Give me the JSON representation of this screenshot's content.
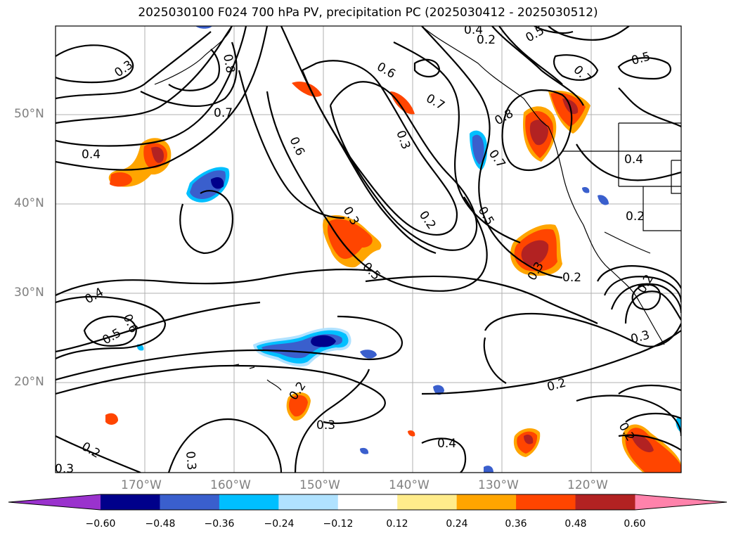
{
  "title": "2025030100 F024 700 hPa PV, precipitation PC (2025030412 - 2025030512)",
  "latitude_labels": [
    "50°N",
    "40°N",
    "30°N",
    "20°N"
  ],
  "longitude_labels": [
    "170°W",
    "160°W",
    "150°W",
    "140°W",
    "130°W",
    "120°W"
  ],
  "colorbar": {
    "colors": [
      "#9a32cd",
      "#00008b",
      "#3a5fcd",
      "#00bfff",
      "#b0e2ff",
      "#ffffff",
      "#ffec8b",
      "#ffa500",
      "#ff4500",
      "#b22222",
      "#ff82ab"
    ],
    "tick_labels": [
      "−0.60",
      "−0.48",
      "−0.36",
      "−0.24",
      "−0.12",
      "0.12",
      "0.24",
      "0.36",
      "0.48",
      "0.60"
    ]
  },
  "contour_labels": [
    "0.3",
    "0.4",
    "0.5",
    "0.6",
    "0.7",
    "0.8",
    "0.2",
    "0.4",
    "0.5",
    "0.6",
    "0.7",
    "0.3",
    "0.2",
    "0.5",
    "0.3",
    "0.2",
    "0.4",
    "0.6",
    "0.5",
    "0.2",
    "0.3",
    "0.2",
    "0.3",
    "0.2",
    "0.3",
    "0.2",
    "0.4",
    "0.3",
    "0.7",
    "0.5",
    "0.8",
    "0.7",
    "0.4",
    "0.2",
    "0.3",
    "0.2"
  ]
}
